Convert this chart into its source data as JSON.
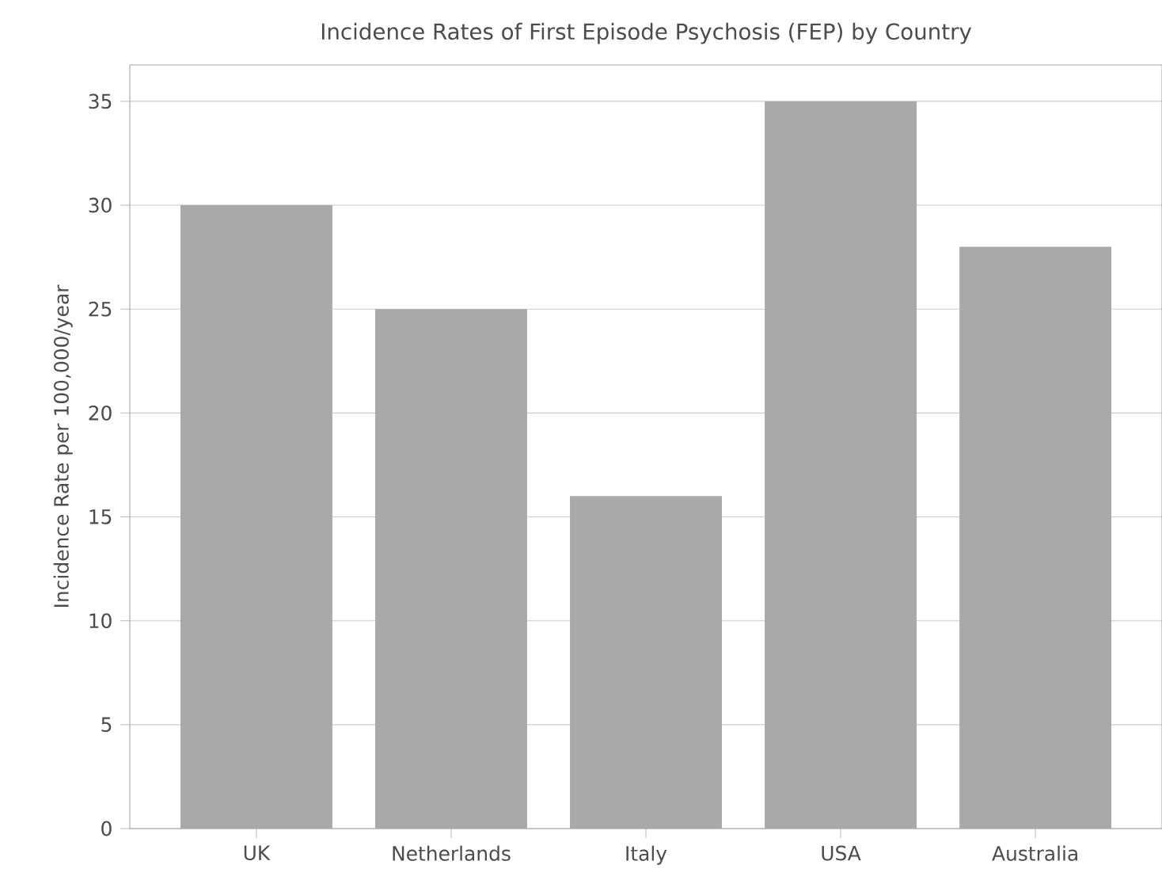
{
  "chart_data": {
    "type": "bar",
    "title": "Incidence Rates of First Episode Psychosis (FEP) by Country",
    "ylabel": "Incidence Rate per 100,000/year",
    "categories": [
      "UK",
      "Netherlands",
      "Italy",
      "USA",
      "Australia"
    ],
    "values": [
      30,
      25,
      16,
      35,
      28
    ],
    "color": "#a9a9a9",
    "ylim": [
      0,
      36.75
    ],
    "yticks": [
      0,
      5,
      10,
      15,
      20,
      25,
      30,
      35
    ],
    "grid": "y"
  }
}
